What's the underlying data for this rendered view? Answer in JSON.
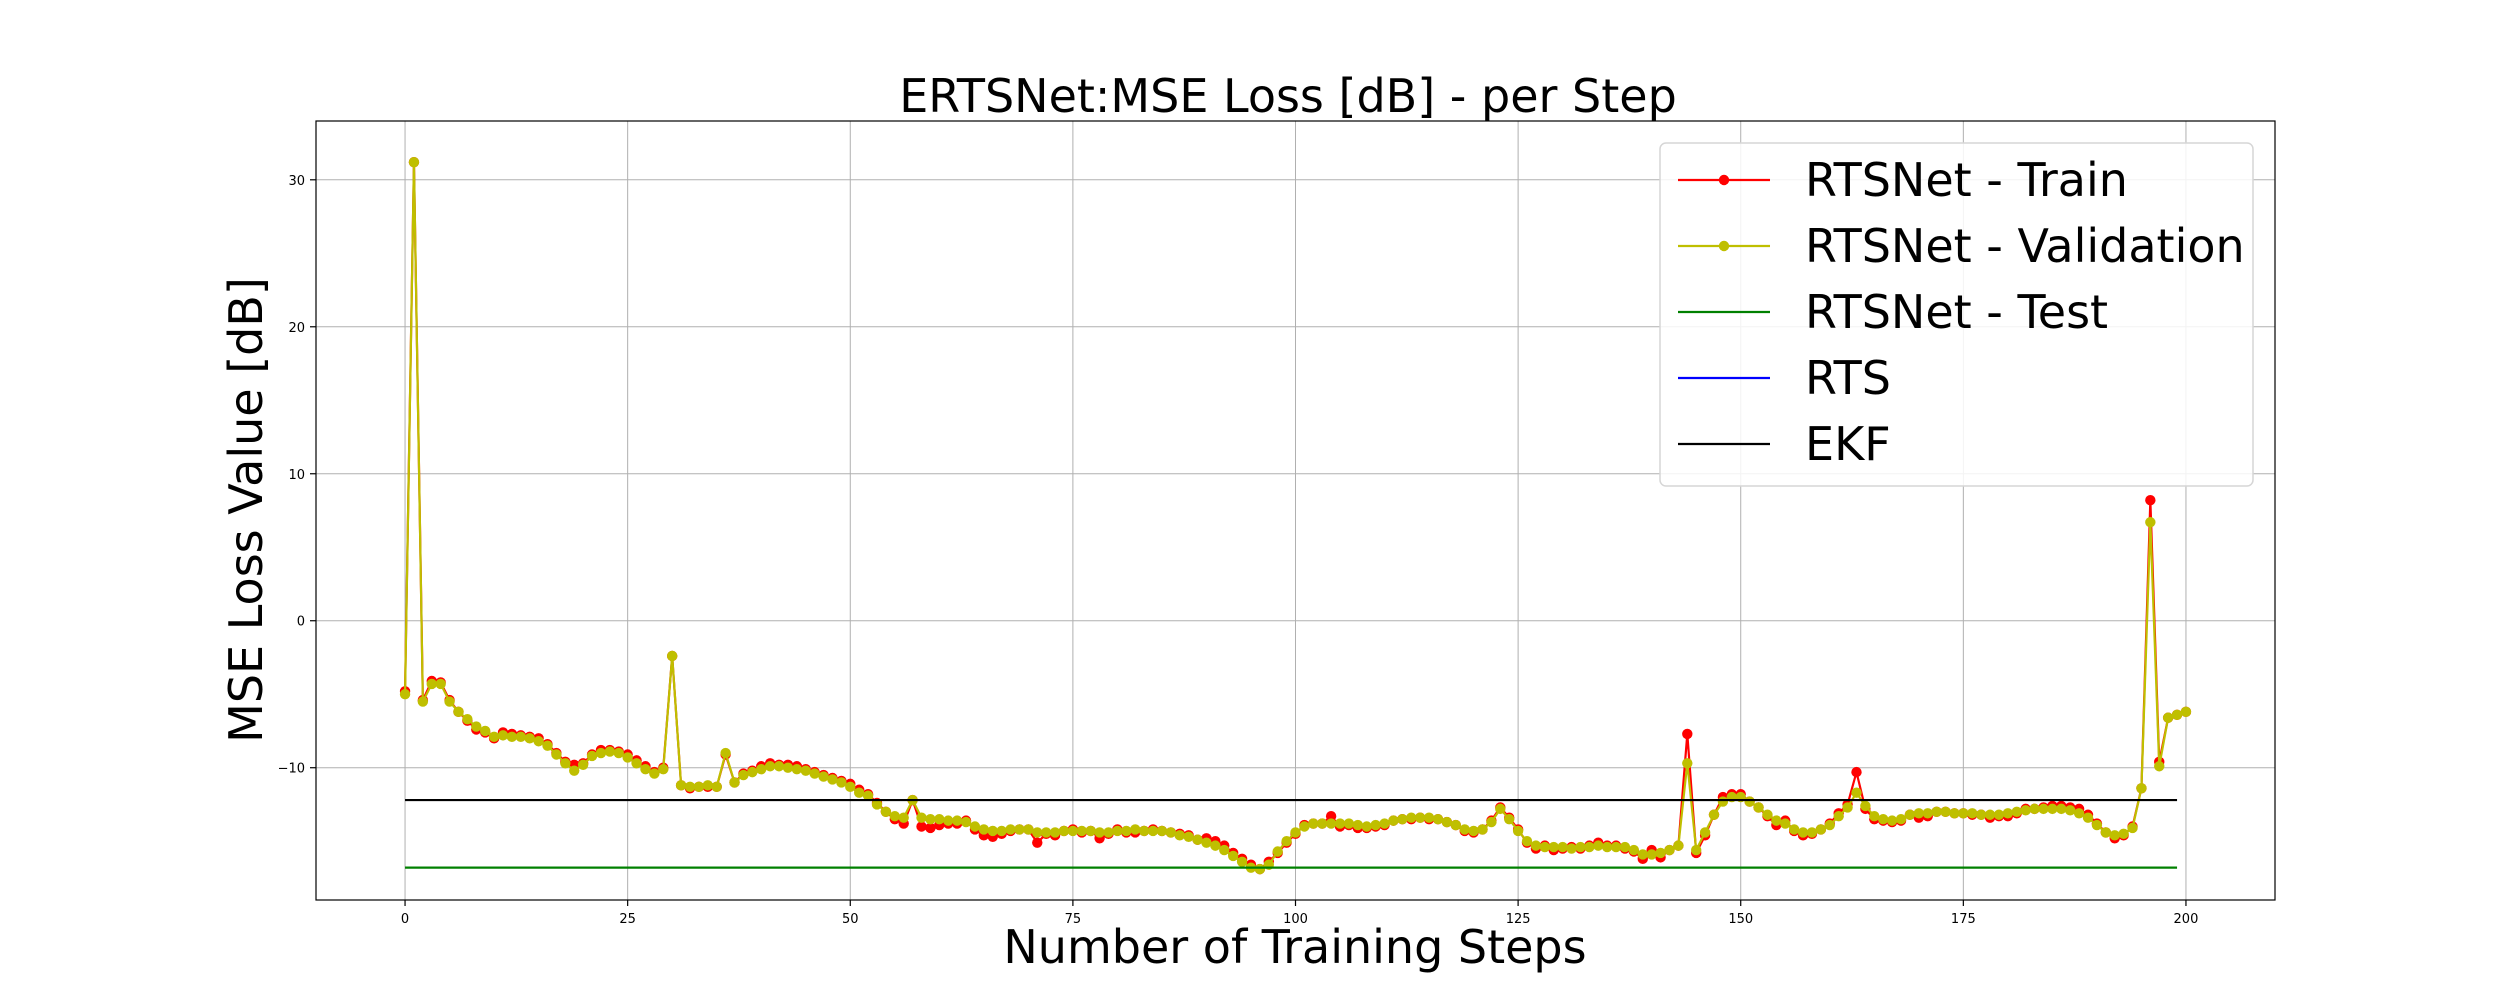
{
  "chart_data": {
    "type": "line",
    "title": "ERTSNet:MSE Loss [dB] - per Step",
    "xlabel": "Number of Training Steps",
    "ylabel": "MSE Loss Value [dB]",
    "xlim": [
      -10,
      210
    ],
    "ylim": [
      -19,
      34
    ],
    "xticks": [
      0,
      25,
      50,
      75,
      100,
      125,
      150,
      175,
      200
    ],
    "yticks": [
      -10,
      0,
      10,
      20,
      30
    ],
    "grid": true,
    "legend_position": "top-right",
    "colors": {
      "train": "#ff0000",
      "validation": "#bfbf00",
      "test": "#008000",
      "rts": "#0000ff",
      "ekf": "#000000"
    },
    "series": [
      {
        "name": "RTSNet - Train",
        "key": "train",
        "marker": "circle",
        "x_start": 0,
        "x_step": 1,
        "y": [
          -4.8,
          31.2,
          -5.4,
          -4.1,
          -4.2,
          -5.4,
          -6.2,
          -6.8,
          -7.4,
          -7.6,
          -8.0,
          -7.6,
          -7.7,
          -7.8,
          -7.9,
          -8.0,
          -8.4,
          -9.0,
          -9.6,
          -9.8,
          -9.7,
          -9.1,
          -8.8,
          -8.8,
          -8.9,
          -9.1,
          -9.5,
          -9.9,
          -10.3,
          -10.0,
          -2.4,
          -11.2,
          -11.4,
          -11.3,
          -11.3,
          -11.3,
          -9.1,
          -11.0,
          -10.4,
          -10.2,
          -9.9,
          -9.7,
          -9.8,
          -9.8,
          -9.9,
          -10.1,
          -10.3,
          -10.5,
          -10.7,
          -10.9,
          -11.1,
          -11.5,
          -11.8,
          -12.4,
          -13.0,
          -13.5,
          -13.8,
          -12.2,
          -14.0,
          -14.1,
          -13.9,
          -13.8,
          -13.8,
          -13.6,
          -14.2,
          -14.6,
          -14.7,
          -14.5,
          -14.3,
          -14.2,
          -14.2,
          -15.1,
          -14.5,
          -14.6,
          -14.3,
          -14.2,
          -14.4,
          -14.3,
          -14.8,
          -14.5,
          -14.2,
          -14.4,
          -14.4,
          -14.3,
          -14.2,
          -14.3,
          -14.4,
          -14.5,
          -14.6,
          -14.9,
          -14.8,
          -15.0,
          -15.3,
          -15.8,
          -16.2,
          -16.6,
          -16.9,
          -16.4,
          -15.8,
          -15.1,
          -14.5,
          -13.9,
          -13.8,
          -13.8,
          -13.3,
          -14.0,
          -13.9,
          -14.1,
          -14.1,
          -14.0,
          -13.9,
          -13.6,
          -13.5,
          -13.5,
          -13.4,
          -13.5,
          -13.5,
          -13.7,
          -13.9,
          -14.3,
          -14.4,
          -14.2,
          -13.6,
          -12.7,
          -13.4,
          -14.2,
          -15.1,
          -15.5,
          -15.3,
          -15.6,
          -15.5,
          -15.4,
          -15.5,
          -15.3,
          -15.1,
          -15.3,
          -15.3,
          -15.5,
          -15.7,
          -16.2,
          -15.6,
          -16.1,
          -15.6,
          -15.3,
          -7.7,
          -15.8,
          -14.6,
          -13.2,
          -12.0,
          -11.8,
          -11.8,
          -12.3,
          -12.7,
          -13.3,
          -13.9,
          -13.6,
          -14.3,
          -14.6,
          -14.5,
          -14.2,
          -13.8,
          -13.1,
          -12.5,
          -10.3,
          -12.8,
          -13.5,
          -13.6,
          -13.7,
          -13.6,
          -13.2,
          -13.4,
          -13.3,
          -13.0,
          -13.0,
          -13.1,
          -13.1,
          -13.2,
          -13.2,
          -13.4,
          -13.3,
          -13.3,
          -13.1,
          -12.8,
          -12.8,
          -12.7,
          -12.6,
          -12.6,
          -12.7,
          -12.8,
          -13.2,
          -13.8,
          -14.4,
          -14.8,
          -14.6,
          -14.0,
          -11.4,
          8.2,
          -9.6,
          -6.6,
          -6.4,
          -6.2
        ]
      },
      {
        "name": "RTSNet - Validation",
        "key": "validation",
        "marker": "circle",
        "x_start": 0,
        "x_step": 1,
        "y": [
          -5.0,
          31.2,
          -5.5,
          -4.3,
          -4.3,
          -5.5,
          -6.2,
          -6.7,
          -7.2,
          -7.5,
          -7.9,
          -7.8,
          -7.9,
          -7.9,
          -8.0,
          -8.2,
          -8.5,
          -9.1,
          -9.7,
          -10.2,
          -9.8,
          -9.2,
          -9.0,
          -8.9,
          -9.0,
          -9.3,
          -9.7,
          -10.1,
          -10.4,
          -10.1,
          -2.4,
          -11.2,
          -11.3,
          -11.3,
          -11.2,
          -11.3,
          -9.0,
          -11.0,
          -10.5,
          -10.3,
          -10.1,
          -9.9,
          -9.9,
          -10.0,
          -10.1,
          -10.2,
          -10.4,
          -10.6,
          -10.8,
          -11.0,
          -11.3,
          -11.7,
          -11.9,
          -12.5,
          -13.0,
          -13.3,
          -13.4,
          -12.2,
          -13.4,
          -13.5,
          -13.5,
          -13.6,
          -13.6,
          -13.7,
          -14.0,
          -14.2,
          -14.3,
          -14.3,
          -14.2,
          -14.2,
          -14.2,
          -14.4,
          -14.4,
          -14.4,
          -14.3,
          -14.3,
          -14.3,
          -14.3,
          -14.4,
          -14.4,
          -14.3,
          -14.3,
          -14.2,
          -14.3,
          -14.3,
          -14.3,
          -14.4,
          -14.6,
          -14.7,
          -14.9,
          -15.1,
          -15.3,
          -15.6,
          -16.0,
          -16.4,
          -16.8,
          -16.9,
          -16.6,
          -15.7,
          -15.0,
          -14.4,
          -14.0,
          -13.8,
          -13.8,
          -13.8,
          -13.8,
          -13.8,
          -13.9,
          -14.0,
          -13.9,
          -13.8,
          -13.6,
          -13.5,
          -13.4,
          -13.4,
          -13.4,
          -13.5,
          -13.7,
          -13.9,
          -14.2,
          -14.3,
          -14.2,
          -13.7,
          -12.8,
          -13.5,
          -14.3,
          -15.0,
          -15.3,
          -15.4,
          -15.4,
          -15.4,
          -15.5,
          -15.4,
          -15.4,
          -15.3,
          -15.4,
          -15.4,
          -15.4,
          -15.6,
          -15.9,
          -15.9,
          -15.8,
          -15.6,
          -15.3,
          -9.7,
          -15.6,
          -14.4,
          -13.2,
          -12.3,
          -12.0,
          -12.0,
          -12.3,
          -12.7,
          -13.2,
          -13.6,
          -13.8,
          -14.2,
          -14.4,
          -14.4,
          -14.2,
          -13.9,
          -13.3,
          -12.7,
          -11.7,
          -12.6,
          -13.3,
          -13.5,
          -13.6,
          -13.5,
          -13.2,
          -13.1,
          -13.1,
          -13.0,
          -13.0,
          -13.1,
          -13.1,
          -13.1,
          -13.2,
          -13.2,
          -13.2,
          -13.1,
          -13.0,
          -12.9,
          -12.8,
          -12.8,
          -12.8,
          -12.8,
          -12.9,
          -13.1,
          -13.4,
          -13.9,
          -14.4,
          -14.6,
          -14.5,
          -14.1,
          -11.4,
          6.7,
          -9.9,
          -6.6,
          -6.4,
          -6.2
        ]
      },
      {
        "name": "RTSNet - Test",
        "key": "test",
        "marker": "none",
        "x": [
          0,
          199
        ],
        "y": [
          -16.8,
          -16.8
        ]
      },
      {
        "name": "RTS",
        "key": "rts",
        "marker": "none",
        "x": [],
        "y": []
      },
      {
        "name": "EKF",
        "key": "ekf",
        "marker": "none",
        "x": [
          0,
          199
        ],
        "y": [
          -12.2,
          -12.2
        ]
      }
    ]
  }
}
